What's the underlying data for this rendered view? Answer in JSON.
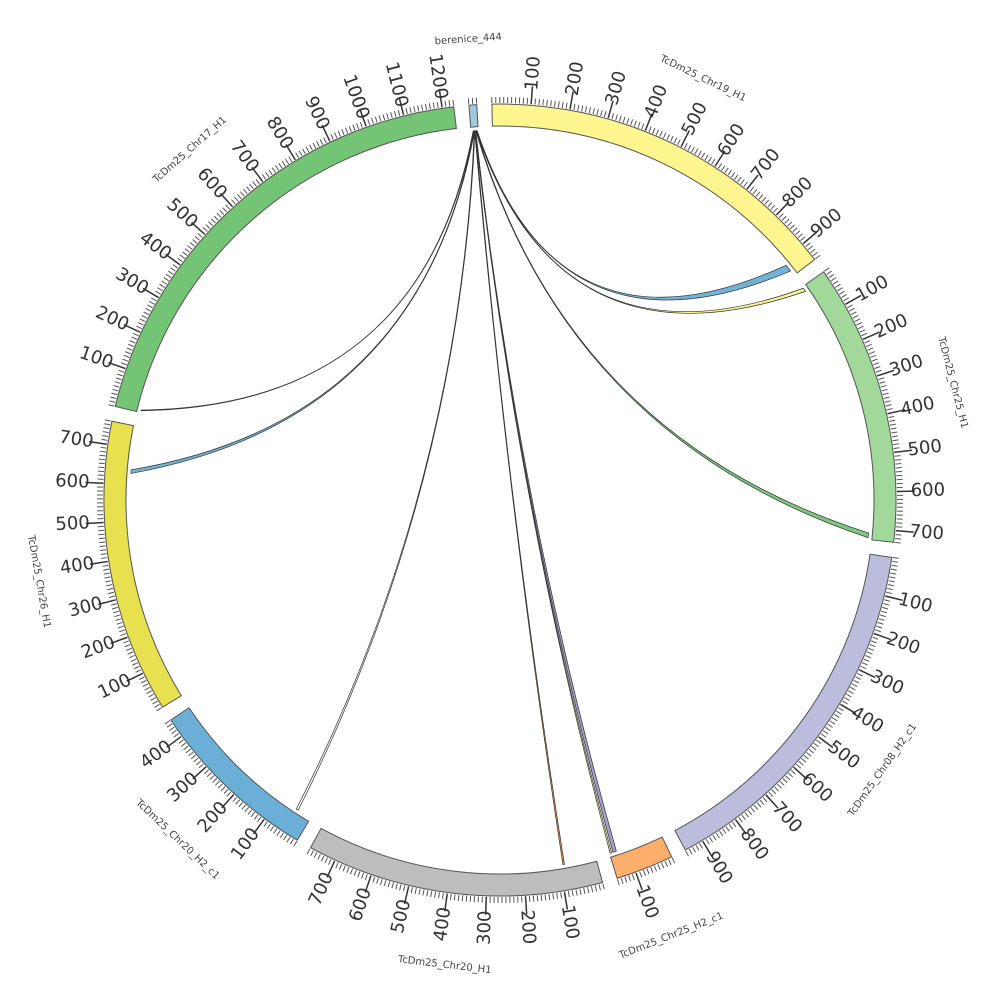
{
  "chart_data": {
    "type": "chord",
    "title": "",
    "scale_unit": "1 tick label unit",
    "segments": [
      {
        "name": "berenice_444",
        "length": 20,
        "color": "#9ecae1",
        "ticks": []
      },
      {
        "name": "TcDm25_Chr19_H1",
        "length": 950,
        "color": "#fff68f",
        "ticks": [
          100,
          200,
          300,
          400,
          500,
          600,
          700,
          800,
          900
        ]
      },
      {
        "name": "TcDm25_Chr25_H1",
        "length": 730,
        "color": "#a1d99b",
        "ticks": [
          100,
          200,
          300,
          400,
          500,
          600,
          700
        ]
      },
      {
        "name": "TcDm25_Chr08_H2_c1",
        "length": 950,
        "color": "#bcbddc",
        "ticks": [
          100,
          200,
          300,
          400,
          500,
          600,
          700,
          800,
          900
        ]
      },
      {
        "name": "TcDm25_Chr25_H2_c1",
        "length": 150,
        "color": "#fdae6b",
        "ticks": [
          100
        ]
      },
      {
        "name": "TcDm25_Chr20_H1",
        "length": 770,
        "color": "#bdbdbd",
        "ticks": [
          100,
          200,
          300,
          400,
          500,
          600,
          700
        ]
      },
      {
        "name": "TcDm25_Chr20_H2_c1",
        "length": 450,
        "color": "#6baed6",
        "ticks": [
          100,
          200,
          300,
          400
        ]
      },
      {
        "name": "TcDm25_Chr26_H1",
        "length": 760,
        "color": "#e7e14f",
        "ticks": [
          100,
          200,
          300,
          400,
          500,
          600,
          700
        ]
      },
      {
        "name": "TcDm25_Chr17_H1",
        "length": 1230,
        "color": "#74c476",
        "ticks": [
          100,
          200,
          300,
          400,
          500,
          600,
          700,
          800,
          900,
          1000,
          1100,
          1200
        ]
      }
    ],
    "links": [
      {
        "from": "berenice_444",
        "from_pos": [
          6,
          8
        ],
        "to": "TcDm25_Chr17_H1",
        "to_pos": [
          5,
          7
        ],
        "color": "#ffffff"
      },
      {
        "from": "berenice_444",
        "from_pos": [
          8,
          10
        ],
        "to": "TcDm25_Chr26_H1",
        "to_pos": [
          630,
          640
        ],
        "color": "#6baed6"
      },
      {
        "from": "berenice_444",
        "from_pos": [
          9,
          11
        ],
        "to": "TcDm25_Chr20_H2_c1",
        "to_pos": [
          40,
          46
        ],
        "color": "#ffffff"
      },
      {
        "from": "berenice_444",
        "from_pos": [
          10,
          12
        ],
        "to": "TcDm25_Chr20_H1",
        "to_pos": [
          88,
          92
        ],
        "color": "#fd8d3c"
      },
      {
        "from": "berenice_444",
        "from_pos": [
          11,
          13
        ],
        "to": "TcDm25_Chr25_H2_c1",
        "to_pos": [
          130,
          140
        ],
        "color": "#9e9ac8"
      },
      {
        "from": "berenice_444",
        "from_pos": [
          12,
          13
        ],
        "to": "TcDm25_Chr25_H2_c1",
        "to_pos": [
          144,
          148
        ],
        "color": "#fff68f"
      },
      {
        "from": "berenice_444",
        "from_pos": [
          13,
          15
        ],
        "to": "TcDm25_Chr25_H1",
        "to_pos": [
          712,
          725
        ],
        "color": "#74c476"
      },
      {
        "from": "berenice_444",
        "from_pos": [
          14,
          16
        ],
        "to": "TcDm25_Chr25_H1",
        "to_pos": [
          5,
          15
        ],
        "color": "#fff68f"
      },
      {
        "from": "berenice_444",
        "from_pos": [
          15,
          17
        ],
        "to": "TcDm25_Chr19_H1",
        "to_pos": [
          915,
          935
        ],
        "color": "#6baed6"
      }
    ]
  }
}
